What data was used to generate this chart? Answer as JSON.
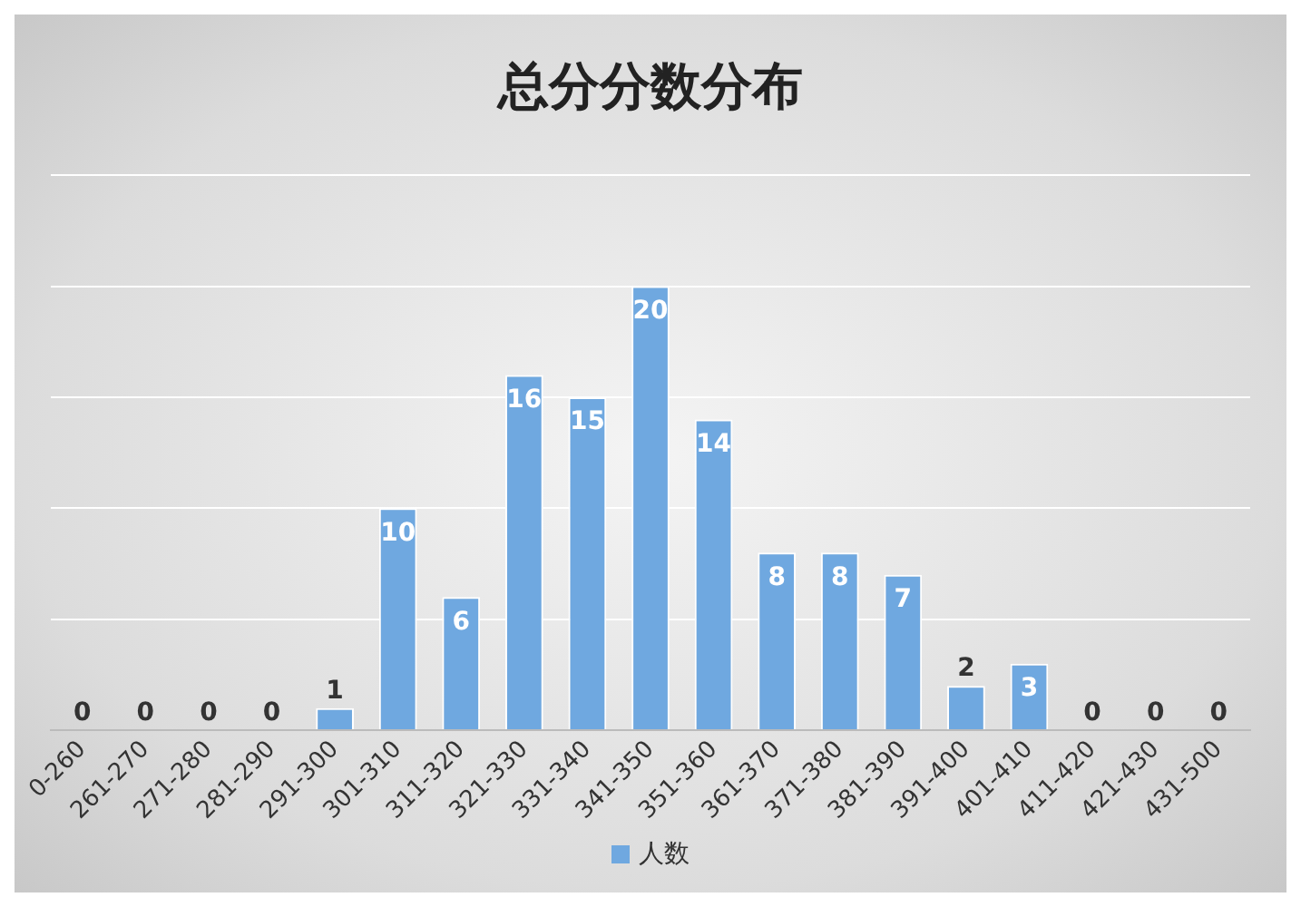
{
  "chart_data": {
    "type": "bar",
    "title": "总分分数分布",
    "categories": [
      "0-260",
      "261-270",
      "271-280",
      "281-290",
      "291-300",
      "301-310",
      "311-320",
      "321-330",
      "331-340",
      "341-350",
      "351-360",
      "361-370",
      "371-380",
      "381-390",
      "391-400",
      "401-410",
      "411-420",
      "421-430",
      "431-500"
    ],
    "series": [
      {
        "name": "人数",
        "color": "#6fa8e0",
        "values": [
          0,
          0,
          0,
          0,
          1,
          10,
          6,
          16,
          15,
          20,
          14,
          8,
          8,
          7,
          2,
          3,
          0,
          0,
          0
        ]
      }
    ],
    "ylim": [
      0,
      25
    ],
    "yticks": [
      0,
      5,
      10,
      15,
      20,
      25
    ],
    "tick_labels": "x",
    "grid": "y",
    "legend": "bottom",
    "data_labels": true
  }
}
